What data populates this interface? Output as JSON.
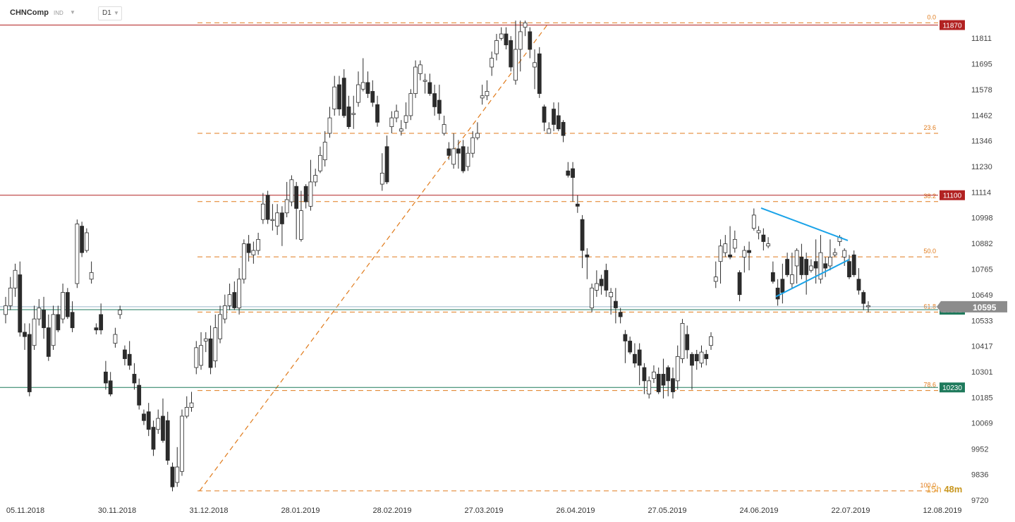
{
  "header": {
    "symbol": "CHNComp",
    "instrument_type": "IND",
    "timeframe": "D1"
  },
  "countdown": {
    "hours": "15h",
    "minutes": "48m"
  },
  "chart_data": {
    "type": "candlestick",
    "title": "",
    "xlabel": "",
    "ylabel": "",
    "ylim": [
      9720,
      11925
    ],
    "y_ticks": [
      11811,
      11695,
      11578,
      11462,
      11346,
      11230,
      11114,
      10998,
      10882,
      10765,
      10649,
      10533,
      10417,
      10301,
      10185,
      10069,
      9952,
      9836,
      9720
    ],
    "x_ticks": [
      "05.11.2018",
      "30.11.2018",
      "31.12.2018",
      "28.01.2019",
      "28.02.2019",
      "27.03.2019",
      "26.04.2019",
      "27.05.2019",
      "24.06.2019",
      "22.07.2019",
      "12.08.2019"
    ],
    "colors": {
      "bull": "#ffffff",
      "bear": "#2b2b2b",
      "wick": "#2b2b2b",
      "fib": "#e07b1c",
      "resistance": "#b22222",
      "support": "#1f7a5c",
      "trend": "#1aa3e8"
    },
    "horizontal_levels": [
      {
        "label": "11870",
        "value": 11870,
        "kind": "resistance",
        "color": "#b22222"
      },
      {
        "label": "11100",
        "value": 11100,
        "kind": "resistance",
        "color": "#b22222"
      },
      {
        "label": "10582",
        "value": 10582,
        "kind": "support",
        "color": "#1f7a5c"
      },
      {
        "label": "10230",
        "value": 10230,
        "kind": "support",
        "color": "#1f7a5c"
      }
    ],
    "current_price": {
      "label": "10595",
      "value": 10595,
      "color": "#8c8c8c"
    },
    "fibonacci": {
      "from": {
        "date": "31.12.2018",
        "value": 9762
      },
      "to": {
        "date": "~12.04.2019",
        "value": 11880
      },
      "levels": [
        {
          "label": "0.0",
          "value": 11880
        },
        {
          "label": "23.6",
          "value": 11380
        },
        {
          "label": "38.2",
          "value": 11071
        },
        {
          "label": "50.0",
          "value": 10821
        },
        {
          "label": "61.8",
          "value": 10571
        },
        {
          "label": "78.6",
          "value": 10216
        },
        {
          "label": "100.0",
          "value": 9762
        }
      ]
    },
    "triangle": {
      "upper": [
        {
          "value": 11042
        },
        {
          "value": 10895
        }
      ],
      "lower": [
        {
          "value": 10641
        },
        {
          "value": 10809
        }
      ]
    },
    "candles": [
      [
        10560,
        10600,
        10520,
        10640
      ],
      [
        10600,
        10680,
        10580,
        10730
      ],
      [
        10680,
        10760,
        10640,
        10790
      ],
      [
        10740,
        10480,
        10460,
        10800
      ],
      [
        10480,
        10460,
        10400,
        10520
      ],
      [
        10470,
        10210,
        10190,
        10520
      ],
      [
        10420,
        10540,
        10400,
        10600
      ],
      [
        10540,
        10590,
        10510,
        10630
      ],
      [
        10580,
        10500,
        10450,
        10640
      ],
      [
        10500,
        10370,
        10350,
        10560
      ],
      [
        10420,
        10560,
        10400,
        10600
      ],
      [
        10560,
        10490,
        10480,
        10600
      ],
      [
        10540,
        10660,
        10520,
        10700
      ],
      [
        10660,
        10550,
        10540,
        10680
      ],
      [
        10570,
        10500,
        10480,
        10620
      ],
      [
        10700,
        10970,
        10680,
        10990
      ],
      [
        10960,
        10840,
        10820,
        10980
      ],
      [
        10850,
        10930,
        10840,
        10950
      ],
      [
        10720,
        10750,
        10700,
        10800
      ],
      [
        10500,
        10490,
        10470,
        10520
      ],
      [
        10560,
        10490,
        10470,
        10610
      ],
      [
        10300,
        10250,
        10220,
        10350
      ],
      [
        10260,
        10200,
        10190,
        10300
      ],
      [
        10430,
        10470,
        10410,
        10500
      ],
      [
        10560,
        10580,
        10540,
        10600
      ],
      [
        10400,
        10360,
        10330,
        10420
      ],
      [
        10380,
        10330,
        10310,
        10440
      ],
      [
        10290,
        10250,
        10220,
        10340
      ],
      [
        10240,
        10150,
        10130,
        10270
      ],
      [
        10110,
        10080,
        10060,
        10130
      ],
      [
        10120,
        10040,
        10010,
        10160
      ],
      [
        10050,
        9950,
        9920,
        10080
      ],
      [
        10040,
        10090,
        10020,
        10130
      ],
      [
        10100,
        9990,
        9980,
        10180
      ],
      [
        10080,
        9900,
        9880,
        10120
      ],
      [
        9870,
        9780,
        9760,
        9890
      ],
      [
        9800,
        9870,
        9780,
        9960
      ],
      [
        9850,
        10100,
        9830,
        10130
      ],
      [
        10100,
        10140,
        10090,
        10190
      ],
      [
        10140,
        10160,
        10120,
        10210
      ],
      [
        10320,
        10410,
        10290,
        10440
      ],
      [
        10330,
        10420,
        10310,
        10480
      ],
      [
        10440,
        10450,
        10390,
        10480
      ],
      [
        10450,
        10320,
        10290,
        10510
      ],
      [
        10350,
        10500,
        10320,
        10560
      ],
      [
        10450,
        10560,
        10430,
        10600
      ],
      [
        10540,
        10600,
        10520,
        10650
      ],
      [
        10600,
        10650,
        10580,
        10700
      ],
      [
        10660,
        10590,
        10580,
        10710
      ],
      [
        10590,
        10720,
        10560,
        10770
      ],
      [
        10720,
        10880,
        10700,
        10900
      ],
      [
        10880,
        10840,
        10800,
        10920
      ],
      [
        10830,
        10850,
        10790,
        10890
      ],
      [
        10850,
        10900,
        10830,
        10930
      ],
      [
        10990,
        11060,
        10970,
        11110
      ],
      [
        11100,
        10990,
        10970,
        11120
      ],
      [
        10990,
        10990,
        10940,
        11060
      ],
      [
        10960,
        11020,
        10920,
        11060
      ],
      [
        11020,
        10970,
        10870,
        11050
      ],
      [
        11020,
        11080,
        11000,
        11160
      ],
      [
        11070,
        11170,
        11050,
        11190
      ],
      [
        11140,
        11040,
        10900,
        11160
      ],
      [
        10900,
        11030,
        10890,
        11120
      ],
      [
        11140,
        11070,
        11040,
        11150
      ],
      [
        11050,
        11160,
        11030,
        11260
      ],
      [
        11160,
        11190,
        11140,
        11220
      ],
      [
        11210,
        11280,
        11200,
        11320
      ],
      [
        11260,
        11340,
        11230,
        11390
      ],
      [
        11380,
        11450,
        11360,
        11500
      ],
      [
        11490,
        11590,
        11460,
        11640
      ],
      [
        11600,
        11490,
        11460,
        11640
      ],
      [
        11630,
        11460,
        11450,
        11670
      ],
      [
        11500,
        11410,
        11400,
        11550
      ],
      [
        11470,
        11470,
        11400,
        11550
      ],
      [
        11520,
        11600,
        11500,
        11660
      ],
      [
        11580,
        11610,
        11570,
        11720
      ],
      [
        11610,
        11560,
        11540,
        11660
      ],
      [
        11570,
        11520,
        11500,
        11620
      ],
      [
        11510,
        11430,
        11410,
        11550
      ],
      [
        11150,
        11200,
        11120,
        11290
      ],
      [
        11320,
        11160,
        11150,
        11370
      ],
      [
        11410,
        11450,
        11380,
        11480
      ],
      [
        11450,
        11480,
        11430,
        11510
      ],
      [
        11390,
        11400,
        11370,
        11440
      ],
      [
        11430,
        11460,
        11400,
        11520
      ],
      [
        11460,
        11560,
        11440,
        11580
      ],
      [
        11560,
        11680,
        11540,
        11710
      ],
      [
        11650,
        11690,
        11620,
        11710
      ],
      [
        11620,
        11620,
        11560,
        11650
      ],
      [
        11610,
        11560,
        11550,
        11650
      ],
      [
        11560,
        11500,
        11460,
        11600
      ],
      [
        11530,
        11470,
        11440,
        11600
      ],
      [
        11380,
        11420,
        11370,
        11460
      ],
      [
        11310,
        11280,
        11260,
        11340
      ],
      [
        11240,
        11310,
        11220,
        11380
      ],
      [
        11310,
        11290,
        11220,
        11350
      ],
      [
        11320,
        11210,
        11200,
        11350
      ],
      [
        11230,
        11290,
        11210,
        11320
      ],
      [
        11290,
        11360,
        11270,
        11390
      ],
      [
        11360,
        11380,
        11350,
        11430
      ],
      [
        11540,
        11550,
        11510,
        11600
      ],
      [
        11550,
        11570,
        11530,
        11620
      ],
      [
        11680,
        11720,
        11640,
        11750
      ],
      [
        11740,
        11800,
        11710,
        11830
      ],
      [
        11810,
        11830,
        11800,
        11860
      ],
      [
        11830,
        11780,
        11760,
        11860
      ],
      [
        11800,
        11680,
        11660,
        11820
      ],
      [
        11620,
        11760,
        11600,
        11890
      ],
      [
        11760,
        11840,
        11660,
        11890
      ],
      [
        11860,
        11880,
        11820,
        11890
      ],
      [
        11840,
        11760,
        11720,
        11860
      ],
      [
        11680,
        11700,
        11580,
        11760
      ],
      [
        11740,
        11560,
        11540,
        11770
      ],
      [
        11500,
        11430,
        11390,
        11510
      ],
      [
        11380,
        11400,
        11380,
        11430
      ],
      [
        11490,
        11420,
        11390,
        11520
      ],
      [
        11460,
        11400,
        11390,
        11520
      ],
      [
        11430,
        11370,
        11340,
        11440
      ],
      [
        11210,
        11190,
        11180,
        11250
      ],
      [
        11220,
        11180,
        11070,
        11250
      ],
      [
        11060,
        11050,
        11020,
        11100
      ],
      [
        10990,
        10850,
        10770,
        11010
      ],
      [
        10830,
        10820,
        10720,
        10860
      ],
      [
        10590,
        10680,
        10570,
        10700
      ],
      [
        10670,
        10700,
        10640,
        10760
      ],
      [
        10720,
        10690,
        10650,
        10740
      ],
      [
        10760,
        10670,
        10640,
        10790
      ],
      [
        10640,
        10660,
        10560,
        10680
      ],
      [
        10620,
        10590,
        10520,
        10680
      ],
      [
        10570,
        10550,
        10520,
        10590
      ],
      [
        10470,
        10440,
        10340,
        10490
      ],
      [
        10440,
        10390,
        10380,
        10460
      ],
      [
        10380,
        10340,
        10320,
        10430
      ],
      [
        10400,
        10330,
        10240,
        10430
      ],
      [
        10320,
        10260,
        10200,
        10340
      ],
      [
        10200,
        10260,
        10180,
        10280
      ],
      [
        10270,
        10300,
        10250,
        10330
      ],
      [
        10290,
        10210,
        10200,
        10320
      ],
      [
        10290,
        10240,
        10180,
        10360
      ],
      [
        10320,
        10260,
        10190,
        10330
      ],
      [
        10270,
        10210,
        10180,
        10320
      ],
      [
        10260,
        10370,
        10220,
        10420
      ],
      [
        10360,
        10520,
        10340,
        10540
      ],
      [
        10470,
        10400,
        10360,
        10510
      ],
      [
        10380,
        10330,
        10220,
        10390
      ],
      [
        10380,
        10350,
        10310,
        10400
      ],
      [
        10340,
        10390,
        10320,
        10420
      ],
      [
        10380,
        10360,
        10330,
        10400
      ],
      [
        10420,
        10460,
        10400,
        10480
      ],
      [
        10710,
        10730,
        10680,
        10800
      ],
      [
        10800,
        10870,
        10700,
        10900
      ],
      [
        10840,
        10880,
        10820,
        10920
      ],
      [
        10830,
        10820,
        10810,
        10960
      ],
      [
        10860,
        10900,
        10840,
        10940
      ],
      [
        10750,
        10650,
        10620,
        10760
      ],
      [
        10820,
        10850,
        10750,
        10870
      ],
      [
        10850,
        10840,
        10760,
        10890
      ],
      [
        10950,
        11010,
        10940,
        11040
      ],
      [
        10930,
        10940,
        10900,
        10960
      ],
      [
        10920,
        10890,
        10850,
        10950
      ],
      [
        10870,
        10880,
        10860,
        10910
      ],
      [
        10750,
        10710,
        10700,
        10800
      ],
      [
        10680,
        10630,
        10600,
        10720
      ],
      [
        10720,
        10660,
        10610,
        10790
      ],
      [
        10810,
        10740,
        10730,
        10840
      ],
      [
        10700,
        10740,
        10680,
        10840
      ],
      [
        10780,
        10850,
        10700,
        10860
      ],
      [
        10820,
        10740,
        10720,
        10880
      ],
      [
        10810,
        10740,
        10650,
        10840
      ],
      [
        10760,
        10780,
        10750,
        10810
      ],
      [
        10800,
        10770,
        10700,
        10900
      ],
      [
        10720,
        10840,
        10700,
        10920
      ],
      [
        10790,
        10770,
        10730,
        10820
      ],
      [
        10780,
        10820,
        10760,
        10900
      ],
      [
        10830,
        10840,
        10820,
        10860
      ],
      [
        10890,
        10910,
        10870,
        10920
      ],
      [
        10820,
        10850,
        10780,
        10860
      ],
      [
        10800,
        10730,
        10720,
        10830
      ],
      [
        10830,
        10740,
        10730,
        10850
      ],
      [
        10720,
        10670,
        10650,
        10770
      ],
      [
        10660,
        10610,
        10580,
        10670
      ],
      [
        10595,
        10600,
        10570,
        10620
      ]
    ]
  }
}
